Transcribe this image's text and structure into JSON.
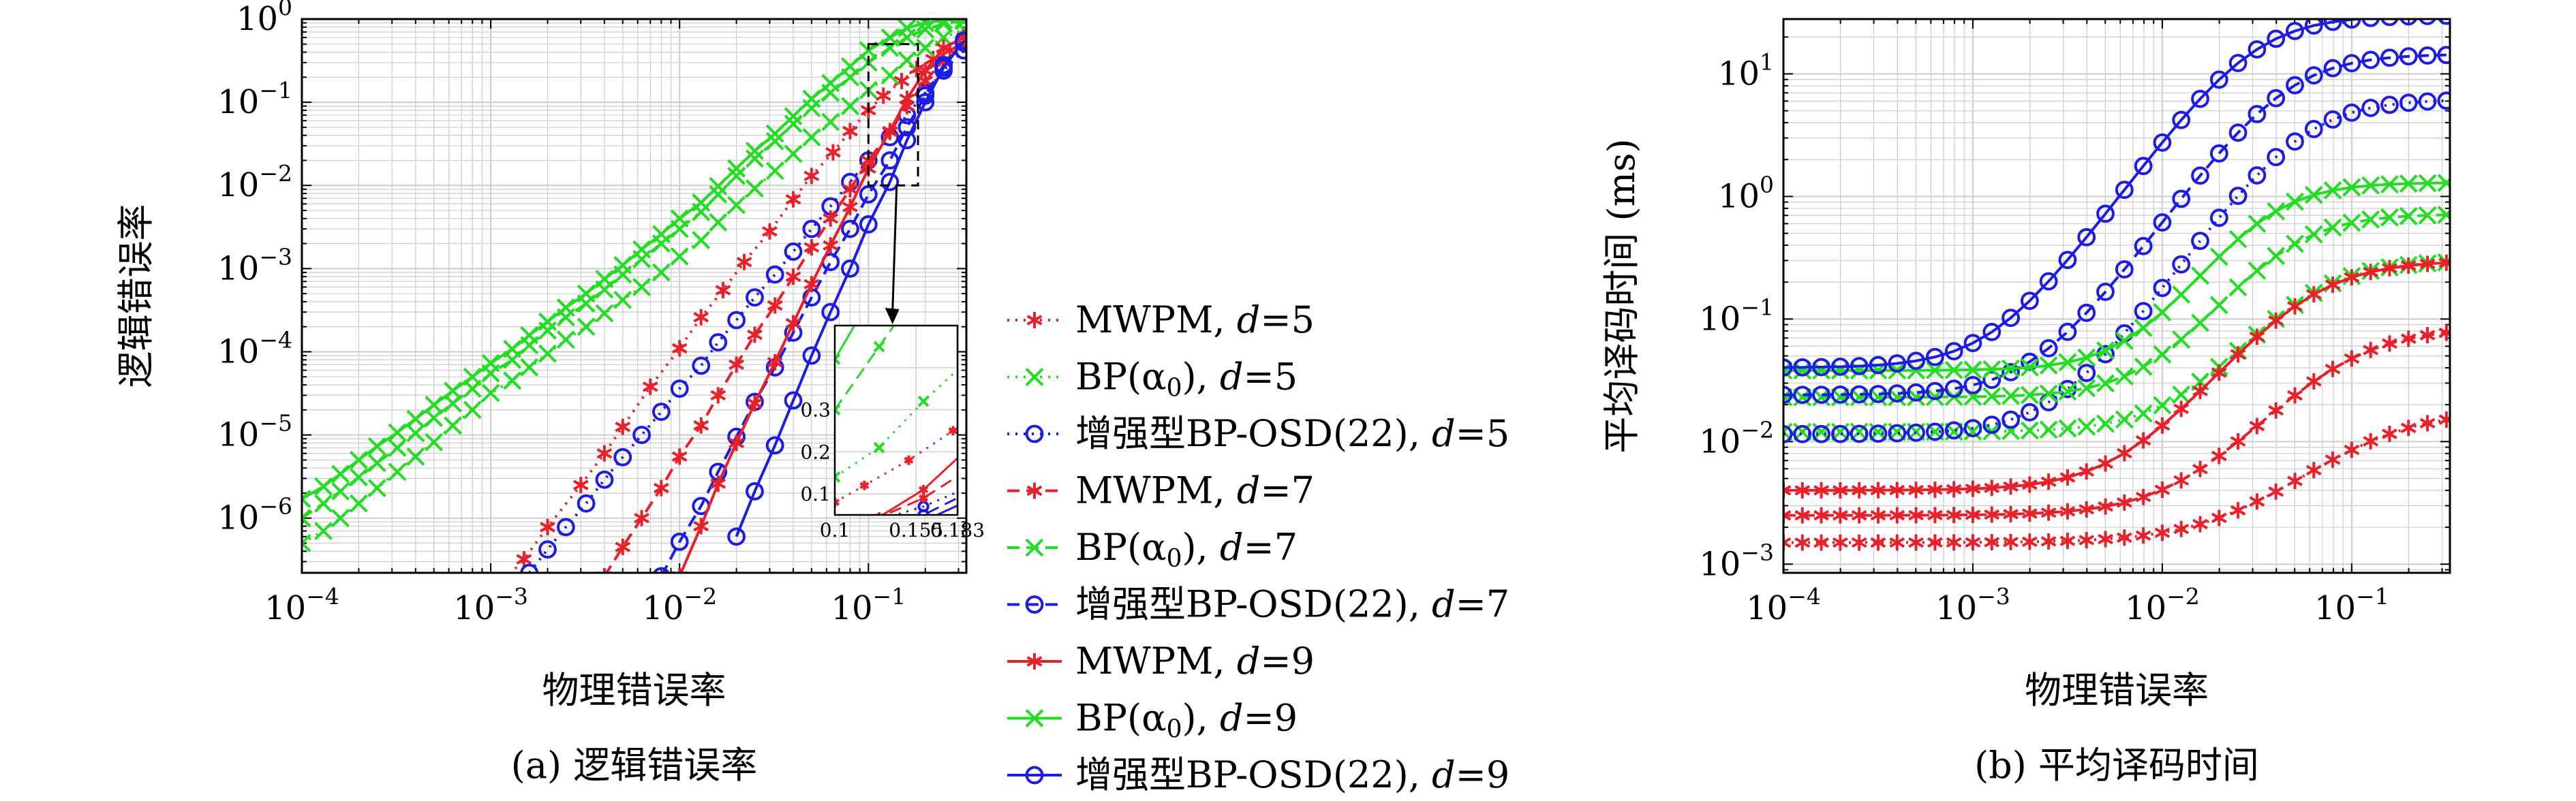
{
  "colors": {
    "red": "#e8202a",
    "green": "#22dd22",
    "blue": "#1c1ce6",
    "grid": "#d0d0d0",
    "axis": "#000000"
  },
  "chart_data": [
    {
      "type": "line",
      "panel_caption": "(a) 逻辑错误率",
      "xlabel": "物理错误率",
      "ylabel": "逻辑错误率",
      "xscale": "log",
      "yscale": "log",
      "xlim": [
        0.0001,
        0.33
      ],
      "ylim": [
        2.2e-07,
        1.0
      ],
      "grid": true,
      "x_ticks": [
        {
          "exp": "−4"
        },
        {
          "exp": "−3"
        },
        {
          "exp": "−2"
        },
        {
          "exp": "−1"
        }
      ],
      "y_ticks": [
        {
          "exp": "0"
        },
        {
          "exp": "−1"
        },
        {
          "exp": "−2"
        },
        {
          "exp": "−3"
        },
        {
          "exp": "−4"
        },
        {
          "exp": "−5"
        },
        {
          "exp": "−6"
        }
      ],
      "series": [
        {
          "name": "MWPM, d=5",
          "color": "red",
          "dash": "dot",
          "marker": "star",
          "x": [
            0.0011,
            0.0015,
            0.002,
            0.003,
            0.004,
            0.005,
            0.007,
            0.01,
            0.013,
            0.017,
            0.022,
            0.03,
            0.04,
            0.05,
            0.065,
            0.08,
            0.1,
            0.12,
            0.15,
            0.18,
            0.22,
            0.27,
            0.32
          ],
          "y": [
            1.5e-07,
            3.2e-07,
            7.8e-07,
            2.5e-06,
            6e-06,
            1.25e-05,
            3.8e-05,
            0.00011,
            0.00026,
            0.00055,
            0.0012,
            0.0028,
            0.0068,
            0.013,
            0.025,
            0.045,
            0.08,
            0.12,
            0.18,
            0.25,
            0.33,
            0.42,
            0.5
          ]
        },
        {
          "name": "BP(α0), d=5",
          "color": "green",
          "dash": "dot",
          "marker": "x",
          "x": [
            0.0001,
            0.00013,
            0.00016,
            0.0002,
            0.00025,
            0.00032,
            0.0004,
            0.0005,
            0.00063,
            0.0008,
            0.001,
            0.0013,
            0.0016,
            0.002,
            0.0025,
            0.0032,
            0.004,
            0.005,
            0.0063,
            0.008,
            0.01,
            0.013,
            0.016,
            0.02,
            0.025,
            0.032,
            0.04,
            0.05,
            0.063,
            0.08,
            0.1,
            0.13,
            0.16,
            0.2,
            0.25,
            0.32
          ],
          "y": [
            5e-07,
            7e-07,
            1e-06,
            1.5e-06,
            2.3e-06,
            3.6e-06,
            5.5e-06,
            8.2e-06,
            1.3e-05,
            2e-05,
            3.2e-05,
            4.5e-05,
            6.5e-05,
            9.5e-05,
            0.00014,
            0.0002,
            0.00029,
            0.00042,
            0.0006,
            0.0009,
            0.0014,
            0.0022,
            0.0036,
            0.0058,
            0.0092,
            0.015,
            0.024,
            0.038,
            0.058,
            0.09,
            0.14,
            0.21,
            0.32,
            0.45,
            0.6,
            0.75
          ]
        },
        {
          "name": "增强型BP-OSD(22), d=5",
          "color": "blue",
          "dash": "dot",
          "marker": "circle",
          "x": [
            0.0016,
            0.002,
            0.0025,
            0.0032,
            0.004,
            0.005,
            0.0063,
            0.008,
            0.01,
            0.013,
            0.016,
            0.02,
            0.025,
            0.032,
            0.04,
            0.05,
            0.063,
            0.08,
            0.1,
            0.13,
            0.16,
            0.2,
            0.25,
            0.32
          ],
          "y": [
            2.2e-07,
            4.2e-07,
            7.8e-07,
            1.5e-06,
            2.9e-06,
            5.4e-06,
            1e-05,
            1.9e-05,
            3.6e-05,
            6.8e-05,
            0.00013,
            0.00024,
            0.00045,
            0.00085,
            0.0016,
            0.003,
            0.0056,
            0.011,
            0.02,
            0.038,
            0.07,
            0.13,
            0.24,
            0.42
          ]
        },
        {
          "name": "MWPM, d=7",
          "color": "red",
          "dash": "dash",
          "marker": "star",
          "x": [
            0.004,
            0.005,
            0.0063,
            0.008,
            0.01,
            0.013,
            0.016,
            0.02,
            0.025,
            0.032,
            0.04,
            0.05,
            0.063,
            0.08,
            0.1,
            0.13,
            0.16,
            0.2,
            0.25,
            0.32
          ],
          "y": [
            2e-07,
            4.5e-07,
            1e-06,
            2.3e-06,
            5.5e-06,
            1.3e-05,
            3e-05,
            7e-05,
            0.00016,
            0.00036,
            0.0008,
            0.0018,
            0.004,
            0.009,
            0.02,
            0.044,
            0.09,
            0.18,
            0.32,
            0.5
          ]
        },
        {
          "name": "BP(α0), d=7",
          "color": "green",
          "dash": "dash",
          "marker": "x",
          "x": [
            0.0001,
            0.00013,
            0.00016,
            0.0002,
            0.00025,
            0.00032,
            0.0004,
            0.0005,
            0.00063,
            0.0008,
            0.001,
            0.0013,
            0.0016,
            0.002,
            0.0025,
            0.0032,
            0.004,
            0.005,
            0.0063,
            0.008,
            0.01,
            0.013,
            0.016,
            0.02,
            0.025,
            0.032,
            0.04,
            0.05,
            0.063,
            0.08,
            0.1,
            0.13,
            0.16,
            0.2,
            0.25,
            0.32
          ],
          "y": [
            1e-06,
            1.5e-06,
            2.1e-06,
            3.1e-06,
            4.6e-06,
            7e-06,
            1.05e-05,
            1.6e-05,
            2.4e-05,
            3.6e-05,
            5.5e-05,
            8e-05,
            0.00012,
            0.00018,
            0.00026,
            0.00038,
            0.00056,
            0.00085,
            0.0013,
            0.002,
            0.003,
            0.0048,
            0.0078,
            0.013,
            0.021,
            0.034,
            0.055,
            0.085,
            0.13,
            0.2,
            0.3,
            0.45,
            0.6,
            0.75,
            0.88,
            0.95
          ]
        },
        {
          "name": "增强型BP-OSD(22), d=7",
          "color": "blue",
          "dash": "dash",
          "marker": "circle",
          "x": [
            0.008,
            0.01,
            0.013,
            0.016,
            0.02,
            0.025,
            0.032,
            0.04,
            0.05,
            0.063,
            0.08,
            0.1,
            0.13,
            0.16,
            0.2,
            0.25,
            0.32
          ],
          "y": [
            2e-07,
            5.2e-07,
            1.4e-06,
            3.6e-06,
            9.5e-06,
            2.5e-05,
            6.5e-05,
            0.00017,
            0.00045,
            0.0012,
            0.003,
            0.0078,
            0.02,
            0.05,
            0.12,
            0.28,
            0.52
          ]
        },
        {
          "name": "MWPM, d=9",
          "color": "red",
          "dash": "solid",
          "marker": "star",
          "x": [
            0.01,
            0.013,
            0.016,
            0.02,
            0.025,
            0.032,
            0.04,
            0.05,
            0.063,
            0.08,
            0.1,
            0.13,
            0.16,
            0.2,
            0.25,
            0.32
          ],
          "y": [
            2e-07,
            8e-07,
            2.6e-06,
            8e-06,
            2.4e-05,
            7.5e-05,
            0.00022,
            0.00065,
            0.0019,
            0.0055,
            0.016,
            0.045,
            0.11,
            0.24,
            0.45,
            0.6
          ]
        },
        {
          "name": "BP(α0), d=9",
          "color": "green",
          "dash": "solid",
          "marker": "x",
          "x": [
            0.0001,
            0.00013,
            0.00016,
            0.0002,
            0.00025,
            0.00032,
            0.0004,
            0.0005,
            0.00063,
            0.0008,
            0.001,
            0.0013,
            0.0016,
            0.002,
            0.0025,
            0.0032,
            0.004,
            0.005,
            0.0063,
            0.008,
            0.01,
            0.013,
            0.016,
            0.02,
            0.025,
            0.032,
            0.04,
            0.05,
            0.063,
            0.08,
            0.1,
            0.13,
            0.16,
            0.2,
            0.25,
            0.32
          ],
          "y": [
            1.7e-06,
            2.4e-06,
            3.4e-06,
            5e-06,
            7.3e-06,
            1.07e-05,
            1.56e-05,
            2.3e-05,
            3.4e-05,
            5e-05,
            7.3e-05,
            0.000108,
            0.000158,
            0.00023,
            0.00034,
            0.0005,
            0.00075,
            0.0011,
            0.0017,
            0.0026,
            0.004,
            0.0062,
            0.0098,
            0.016,
            0.026,
            0.042,
            0.068,
            0.11,
            0.17,
            0.27,
            0.42,
            0.6,
            0.78,
            0.9,
            0.97,
            0.99
          ]
        },
        {
          "name": "增强型BP-OSD(22), d=9",
          "color": "blue",
          "dash": "solid",
          "marker": "circle",
          "x": [
            0.02,
            0.025,
            0.032,
            0.04,
            0.05,
            0.063,
            0.08,
            0.1,
            0.13,
            0.16,
            0.2,
            0.25,
            0.32
          ],
          "y": [
            6e-07,
            2.1e-06,
            7.5e-06,
            2.6e-05,
            9e-05,
            0.0003,
            0.001,
            0.0034,
            0.011,
            0.035,
            0.1,
            0.26,
            0.55
          ]
        }
      ],
      "inset": {
        "xlim": [
          0.1,
          0.183
        ],
        "ylim": [
          0.05,
          0.5
        ],
        "x_tick_labels": [
          "0.1",
          "0.155",
          "0.183"
        ],
        "y_tick_labels": [
          "0.1",
          "0.2",
          "0.3"
        ]
      },
      "zoom_box": {
        "x": [
          0.1,
          0.183
        ],
        "y": [
          0.01,
          0.5
        ]
      }
    },
    {
      "type": "line",
      "panel_caption": "(b) 平均译码时间",
      "xlabel": "物理错误率",
      "ylabel": "平均译码时间 (ms)",
      "xscale": "log",
      "yscale": "log",
      "xlim": [
        0.0001,
        0.33
      ],
      "ylim": [
        0.00085,
        28
      ],
      "grid": true,
      "x_ticks": [
        {
          "exp": "−4"
        },
        {
          "exp": "−3"
        },
        {
          "exp": "−2"
        },
        {
          "exp": "−1"
        }
      ],
      "y_ticks": [
        {
          "exp": "1"
        },
        {
          "exp": "0"
        },
        {
          "exp": "−1"
        },
        {
          "exp": "−2"
        },
        {
          "exp": "−3"
        }
      ],
      "series": [
        {
          "name": "MWPM, d=5",
          "color": "red",
          "dash": "dot",
          "marker": "star",
          "base": 0.0015,
          "end": 0.018,
          "mid": 0.12,
          "slope": 1.6,
          "cap": 100
        },
        {
          "name": "BP(α0), d=5",
          "color": "green",
          "dash": "dot",
          "marker": "x",
          "base": 0.012,
          "end": 0.3,
          "mid": 0.06,
          "slope": 2.0,
          "cap": 0.33
        },
        {
          "name": "增强型BP-OSD(22), d=5",
          "color": "blue",
          "dash": "dot",
          "marker": "circle",
          "base": 0.0115,
          "end": 6.2,
          "mid": 0.055,
          "slope": 2.1,
          "cap": 7.5
        },
        {
          "name": "MWPM, d=7",
          "color": "red",
          "dash": "dash",
          "marker": "star",
          "base": 0.0025,
          "end": 0.085,
          "mid": 0.09,
          "slope": 1.8,
          "cap": 100
        },
        {
          "name": "BP(α0), d=7",
          "color": "green",
          "dash": "dash",
          "marker": "x",
          "base": 0.023,
          "end": 0.72,
          "mid": 0.045,
          "slope": 2.1,
          "cap": 0.75
        },
        {
          "name": "增强型BP-OSD(22), d=7",
          "color": "blue",
          "dash": "dash",
          "marker": "circle",
          "base": 0.024,
          "end": 14.5,
          "mid": 0.045,
          "slope": 2.1,
          "cap": 15.5
        },
        {
          "name": "MWPM, d=9",
          "color": "red",
          "dash": "solid",
          "marker": "star",
          "base": 0.004,
          "end": 0.3,
          "mid": 0.06,
          "slope": 1.9,
          "cap": 100
        },
        {
          "name": "BP(α0), d=9",
          "color": "green",
          "dash": "solid",
          "marker": "x",
          "base": 0.038,
          "end": 1.3,
          "mid": 0.035,
          "slope": 2.2,
          "cap": 1.35
        },
        {
          "name": "增强型BP-OSD(22), d=9",
          "color": "blue",
          "dash": "solid",
          "marker": "circle",
          "base": 0.04,
          "end": 30,
          "mid": 0.03,
          "slope": 2.1,
          "cap": 32
        }
      ]
    }
  ],
  "legend": {
    "items": [
      {
        "text": "MWPM, ",
        "var": "d",
        "val": "=5",
        "color": "red",
        "dash": "dot",
        "marker": "star"
      },
      {
        "text": "BP(α",
        "sub": "0",
        "text2": "), ",
        "var": "d",
        "val": "=5",
        "color": "green",
        "dash": "dot",
        "marker": "x"
      },
      {
        "text": "增强型BP-OSD(22), ",
        "var": "d",
        "val": "=5",
        "color": "blue",
        "dash": "dot",
        "marker": "circle"
      },
      {
        "text": "MWPM, ",
        "var": "d",
        "val": "=7",
        "color": "red",
        "dash": "dash",
        "marker": "star"
      },
      {
        "text": "BP(α",
        "sub": "0",
        "text2": "), ",
        "var": "d",
        "val": "=7",
        "color": "green",
        "dash": "dash",
        "marker": "x"
      },
      {
        "text": "增强型BP-OSD(22), ",
        "var": "d",
        "val": "=7",
        "color": "blue",
        "dash": "dash",
        "marker": "circle"
      },
      {
        "text": "MWPM, ",
        "var": "d",
        "val": "=9",
        "color": "red",
        "dash": "solid",
        "marker": "star"
      },
      {
        "text": "BP(α",
        "sub": "0",
        "text2": "), ",
        "var": "d",
        "val": "=9",
        "color": "green",
        "dash": "solid",
        "marker": "x"
      },
      {
        "text": "增强型BP-OSD(22), ",
        "var": "d",
        "val": "=9",
        "color": "blue",
        "dash": "solid",
        "marker": "circle"
      }
    ]
  },
  "tick_base": "10"
}
